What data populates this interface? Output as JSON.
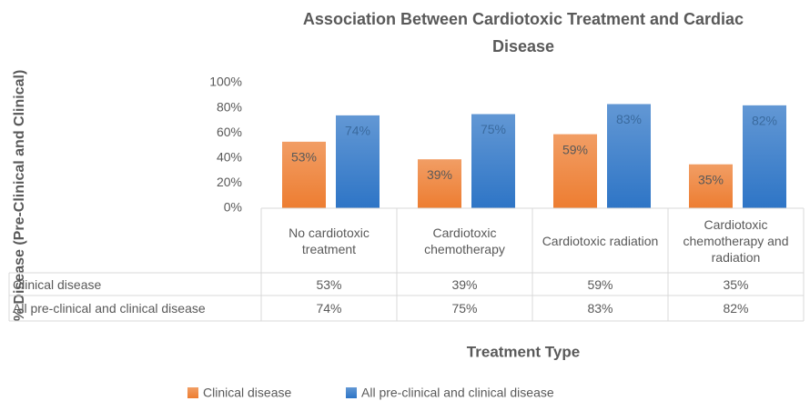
{
  "chart_data": {
    "type": "bar",
    "title": "Association Between Cardiotoxic Treatment and Cardiac Disease",
    "y_label": "% Disease (Pre-Clinical and Clinical)",
    "x_label": "Treatment Type",
    "categories": [
      "No cardiotoxic treatment",
      "Cardiotoxic chemotherapy",
      "Cardiotoxic radiation",
      "Cardiotoxic chemotherapy and radiation"
    ],
    "series": [
      {
        "name": "Clinical disease",
        "color": "#ed7d31",
        "values": [
          53,
          39,
          59,
          35
        ],
        "value_labels": [
          "53%",
          "39%",
          "59%",
          "35%"
        ]
      },
      {
        "name": "All pre-clinical and clinical disease",
        "color": "#2e75c6",
        "values": [
          74,
          75,
          83,
          82
        ],
        "value_labels": [
          "74%",
          "75%",
          "83%",
          "82%"
        ]
      }
    ],
    "ylim": [
      0,
      100
    ],
    "yticks": [
      {
        "value": 0,
        "label": "0%"
      },
      {
        "value": 20,
        "label": "20%"
      },
      {
        "value": 40,
        "label": "40%"
      },
      {
        "value": 60,
        "label": "60%"
      },
      {
        "value": 80,
        "label": "80%"
      },
      {
        "value": 100,
        "label": "100%"
      }
    ],
    "grid": false,
    "legend": "bottom"
  }
}
